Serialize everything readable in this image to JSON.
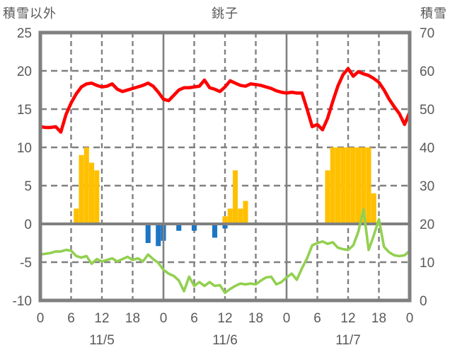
{
  "header": {
    "left_axis_title": "積雪以外",
    "chart_title": "銚子",
    "right_axis_title": "積雪"
  },
  "colors": {
    "red_line": "#fe0000",
    "green_line": "#92d050",
    "yellow_bars": "#ffc000",
    "blue_bars": "#1d76c4",
    "grid": "#808080",
    "text": "#595959",
    "background": "#ffffff"
  },
  "chart_data": {
    "type": "combo line+bar, 3 days of hourly weather observations for 銚子 (Choshi)",
    "x_axis": {
      "hours_span": 72,
      "tick_hours": [
        0,
        6,
        12,
        18,
        24,
        30,
        36,
        42,
        48,
        54,
        60,
        66,
        72
      ],
      "tick_labels": [
        "0",
        "6",
        "12",
        "18",
        "0",
        "6",
        "12",
        "18",
        "0",
        "6",
        "12",
        "18",
        "0"
      ],
      "date_labels": [
        "11/5",
        "11/6",
        "11/7"
      ],
      "date_label_hours": [
        12,
        36,
        60
      ]
    },
    "left_axis": {
      "title": "積雪以外",
      "min": -10,
      "max": 25,
      "ticks": [
        25,
        20,
        15,
        10,
        5,
        0,
        -5,
        -10
      ]
    },
    "right_axis": {
      "title": "積雪",
      "min": 0,
      "max": 70,
      "ticks": [
        70,
        60,
        50,
        40,
        30,
        20,
        10,
        0
      ]
    },
    "gridlines": {
      "horizontal_dashed_at": [
        20,
        15,
        10,
        5,
        -5
      ],
      "horizontal_solid_at": [
        0
      ],
      "vertical_dashed_at_hours": [
        6,
        12,
        18,
        30,
        36,
        42,
        54,
        60,
        66
      ],
      "vertical_solid_at_hours": [
        24,
        48
      ]
    },
    "series": [
      {
        "name": "red-line",
        "type": "line",
        "axis": "left",
        "color_key": "red_line",
        "values_hourly": [
          12.7,
          12.6,
          12.6,
          12.7,
          12.0,
          14.3,
          15.8,
          17.0,
          17.9,
          18.3,
          18.4,
          18.1,
          17.9,
          18.0,
          18.3,
          17.6,
          17.3,
          17.5,
          17.7,
          17.9,
          18.1,
          18.4,
          18.0,
          17.2,
          16.3,
          16.1,
          16.8,
          17.5,
          17.8,
          17.8,
          17.9,
          18.0,
          18.8,
          17.8,
          17.6,
          17.3,
          17.9,
          18.7,
          18.4,
          18.1,
          18.0,
          18.3,
          18.2,
          18.1,
          17.9,
          17.7,
          17.4,
          17.2,
          17.1,
          17.2,
          17.1,
          17.1,
          15.0,
          12.7,
          13.0,
          12.3,
          13.8,
          16.0,
          18.0,
          19.5,
          20.3,
          19.3,
          19.9,
          19.6,
          19.4,
          19.0,
          18.5,
          17.5,
          16.3,
          15.3,
          14.4,
          13.0,
          14.6
        ]
      },
      {
        "name": "green-line",
        "type": "line",
        "axis": "left",
        "color_key": "green_line",
        "values_hourly": [
          -4.0,
          -3.9,
          -3.8,
          -3.6,
          -3.6,
          -3.4,
          -3.5,
          -4.2,
          -4.4,
          -4.2,
          -5.2,
          -4.6,
          -4.9,
          -4.7,
          -4.5,
          -4.9,
          -4.6,
          -4.3,
          -4.7,
          -4.5,
          -4.9,
          -4.0,
          -4.6,
          -5.1,
          -6.0,
          -6.5,
          -6.8,
          -7.4,
          -8.8,
          -6.9,
          -8.1,
          -7.6,
          -8.1,
          -7.6,
          -8.1,
          -8.0,
          -9.0,
          -8.5,
          -8.1,
          -7.8,
          -7.9,
          -7.8,
          -7.9,
          -7.4,
          -7.0,
          -6.9,
          -7.9,
          -7.6,
          -7.0,
          -6.5,
          -7.3,
          -5.8,
          -4.5,
          -2.8,
          -2.5,
          -2.3,
          -2.6,
          -2.4,
          -3.1,
          -3.3,
          -3.4,
          -2.8,
          -1.0,
          1.9,
          -3.4,
          -1.5,
          0.6,
          -3.0,
          -3.7,
          -4.1,
          -4.2,
          -4.1,
          -3.5
        ]
      },
      {
        "name": "yellow-bars",
        "type": "bar",
        "axis": "left",
        "color_key": "yellow_bars",
        "bars_hour_value": [
          [
            7,
            2
          ],
          [
            8,
            9
          ],
          [
            9,
            10
          ],
          [
            10,
            8
          ],
          [
            11,
            7
          ],
          [
            36,
            1
          ],
          [
            37,
            2
          ],
          [
            38,
            7
          ],
          [
            39,
            2
          ],
          [
            40,
            3
          ],
          [
            56,
            7
          ],
          [
            57,
            10
          ],
          [
            58,
            10
          ],
          [
            59,
            10
          ],
          [
            60,
            10
          ],
          [
            61,
            10
          ],
          [
            62,
            10
          ],
          [
            63,
            10
          ],
          [
            64,
            10
          ],
          [
            65,
            4
          ]
        ]
      },
      {
        "name": "blue-bars",
        "type": "bar",
        "axis": "left",
        "color_key": "blue_bars",
        "bars_hour_value": [
          [
            21,
            -2.5
          ],
          [
            23,
            -2.9
          ],
          [
            24,
            -2.2
          ],
          [
            27,
            -0.9
          ],
          [
            30,
            -0.9
          ],
          [
            34,
            -1.8
          ],
          [
            36,
            -0.6
          ]
        ]
      }
    ]
  }
}
